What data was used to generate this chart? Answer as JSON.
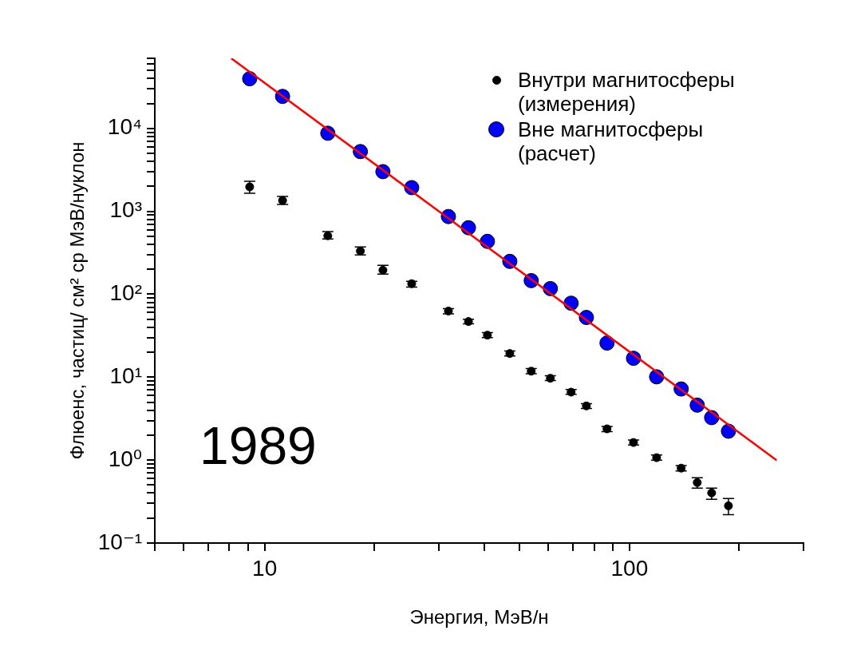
{
  "chart_data": {
    "type": "scatter",
    "xlabel": "Энергия, МэВ/н",
    "ylabel": "Флюенс, частиц/ см² ср МэВ/нуклон",
    "annotations": [
      "1989"
    ],
    "log": "xy",
    "grid": false,
    "legend": "top right",
    "xlim": [
      5,
      300
    ],
    "ylim": [
      0.1,
      70000
    ],
    "xticks": [
      {
        "value": 5,
        "label": null
      },
      {
        "value": 6,
        "label": null
      },
      {
        "value": 7,
        "label": null
      },
      {
        "value": 8,
        "label": null
      },
      {
        "value": 9,
        "label": null
      },
      10,
      {
        "value": 20,
        "label": null
      },
      {
        "value": 30,
        "label": null
      },
      {
        "value": 40,
        "label": null
      },
      {
        "value": 50,
        "label": null
      },
      {
        "value": 60,
        "label": null
      },
      {
        "value": 70,
        "label": null
      },
      {
        "value": 80,
        "label": null
      },
      {
        "value": 90,
        "label": null
      },
      100,
      {
        "value": 200,
        "label": null
      },
      {
        "value": 300,
        "label": null
      }
    ],
    "yticks": [
      {
        "value": 0.1,
        "label": "10⁻¹"
      },
      {
        "value": 0.2,
        "label": null
      },
      {
        "value": 0.3,
        "label": null
      },
      {
        "value": 0.4,
        "label": null
      },
      {
        "value": 0.5,
        "label": null
      },
      {
        "value": 0.6,
        "label": null
      },
      {
        "value": 0.7,
        "label": null
      },
      {
        "value": 0.8,
        "label": null
      },
      {
        "value": 0.9,
        "label": null
      },
      {
        "value": 1,
        "label": "10⁰"
      },
      {
        "value": 2,
        "label": null
      },
      {
        "value": 3,
        "label": null
      },
      {
        "value": 4,
        "label": null
      },
      {
        "value": 5,
        "label": null
      },
      {
        "value": 6,
        "label": null
      },
      {
        "value": 7,
        "label": null
      },
      {
        "value": 8,
        "label": null
      },
      {
        "value": 9,
        "label": null
      },
      {
        "value": 10,
        "label": "10¹"
      },
      {
        "value": 20,
        "label": null
      },
      {
        "value": 30,
        "label": null
      },
      {
        "value": 40,
        "label": null
      },
      {
        "value": 50,
        "label": null
      },
      {
        "value": 60,
        "label": null
      },
      {
        "value": 70,
        "label": null
      },
      {
        "value": 80,
        "label": null
      },
      {
        "value": 90,
        "label": null
      },
      {
        "value": 100,
        "label": "10²"
      },
      {
        "value": 200,
        "label": null
      },
      {
        "value": 300,
        "label": null
      },
      {
        "value": 400,
        "label": null
      },
      {
        "value": 500,
        "label": null
      },
      {
        "value": 600,
        "label": null
      },
      {
        "value": 700,
        "label": null
      },
      {
        "value": 800,
        "label": null
      },
      {
        "value": 900,
        "label": null
      },
      {
        "value": 1000,
        "label": "10³"
      },
      {
        "value": 2000,
        "label": null
      },
      {
        "value": 3000,
        "label": null
      },
      {
        "value": 4000,
        "label": null
      },
      {
        "value": 5000,
        "label": null
      },
      {
        "value": 6000,
        "label": null
      },
      {
        "value": 7000,
        "label": null
      },
      {
        "value": 8000,
        "label": null
      },
      {
        "value": 9000,
        "label": null
      },
      {
        "value": 10000,
        "label": "10⁴"
      },
      {
        "value": 20000,
        "label": null
      },
      {
        "value": 30000,
        "label": null
      },
      {
        "value": 40000,
        "label": null
      },
      {
        "value": 50000,
        "label": null
      },
      {
        "value": 60000,
        "label": null
      },
      {
        "value": 70000,
        "label": null
      }
    ],
    "series": [
      {
        "name": "Внутри магнитосферы (измерения)",
        "color": "#000000",
        "marker": "circle",
        "x": [
          9.1,
          11.2,
          14.9,
          18.3,
          21.1,
          25.3,
          31.9,
          36.2,
          40.8,
          47.0,
          53.8,
          60.7,
          69.2,
          76.2,
          86.8,
          102.6,
          118.7,
          138.6,
          153.4,
          168,
          186.8
        ],
        "values": [
          1970,
          1350,
          507,
          332,
          195,
          134,
          62.7,
          46.9,
          32.1,
          19.3,
          11.8,
          9.7,
          6.6,
          4.5,
          2.38,
          1.63,
          1.07,
          0.8,
          0.536,
          0.402,
          0.281
        ],
        "errors": [
          [
            1650,
            2300
          ],
          [
            1210,
            1510
          ],
          [
            464,
            568
          ],
          [
            297,
            372
          ],
          [
            175,
            223
          ],
          [
            122,
            143
          ],
          [
            58,
            67
          ],
          [
            44,
            50
          ],
          [
            30,
            34.5
          ],
          [
            18,
            20.7
          ],
          [
            11,
            12.7
          ],
          [
            9.1,
            10.4
          ],
          [
            6.2,
            7.1
          ],
          [
            4.2,
            4.8
          ],
          [
            2.2,
            2.55
          ],
          [
            1.52,
            1.75
          ],
          [
            1.0,
            1.15
          ],
          [
            0.74,
            0.86
          ],
          [
            0.459,
            0.612
          ],
          [
            0.336,
            0.459
          ],
          [
            0.22,
            0.344
          ]
        ]
      },
      {
        "name": "Вне магнитосферы (расчет)",
        "color": "#0000ff",
        "marker": "circle",
        "x": [
          9.1,
          11.2,
          14.9,
          18.3,
          21.1,
          25.3,
          31.9,
          36.2,
          40.8,
          47.0,
          53.8,
          60.7,
          69.2,
          76.2,
          86.8,
          102.6,
          118.7,
          138.6,
          153.4,
          168,
          186.8
        ],
        "values": [
          39700,
          24300,
          8740,
          5250,
          3010,
          1930,
          865,
          634,
          434,
          249,
          146,
          117,
          78,
          52.5,
          25.8,
          16.9,
          10.1,
          7.2,
          4.6,
          3.25,
          2.23
        ]
      },
      {
        "type": "line",
        "color": "#ff0000",
        "marker": "none",
        "x": [
          8.1,
          253
        ],
        "values": [
          70000,
          1
        ]
      }
    ]
  }
}
